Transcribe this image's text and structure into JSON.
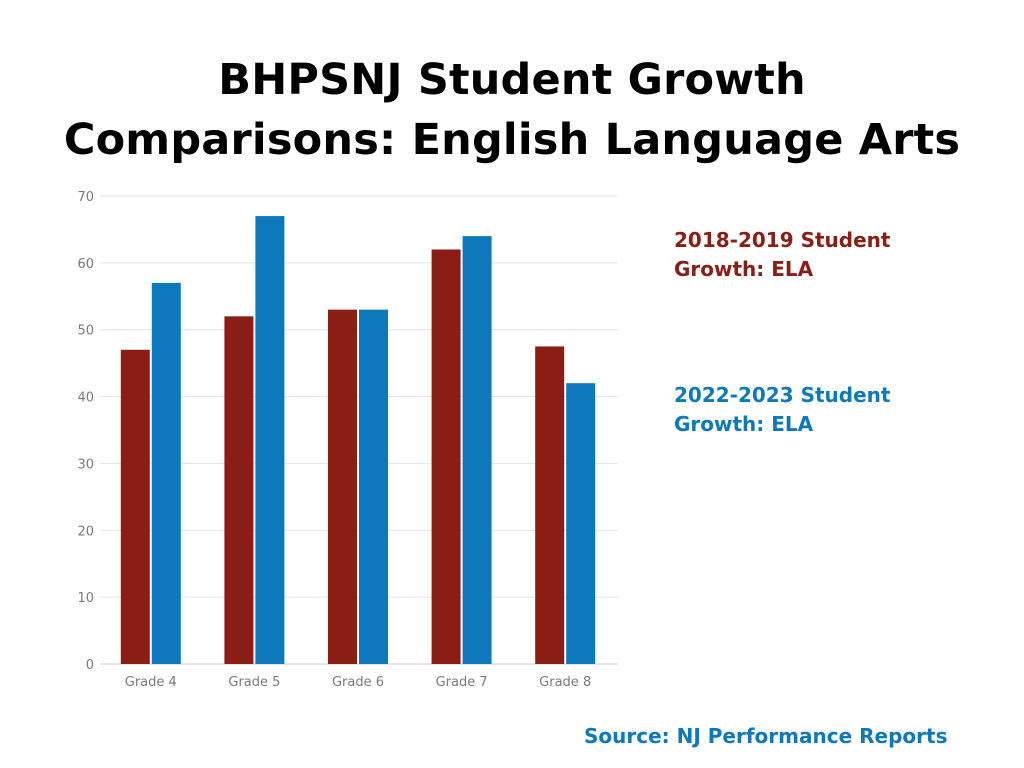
{
  "chart_data": {
    "type": "bar",
    "title": "BHPSNJ Student Growth Comparisons: English Language Arts",
    "title_lines": [
      "BHPSNJ Student Growth",
      "Comparisons: English Language Arts"
    ],
    "categories": [
      "Grade 4",
      "Grade 5",
      "Grade 6",
      "Grade 7",
      "Grade 8"
    ],
    "series": [
      {
        "name": "2018-2019 Student Growth: ELA",
        "name_lines": [
          "2018-2019 Student",
          "Growth: ELA"
        ],
        "color": "#8b1e14",
        "values": [
          47,
          52,
          53,
          62,
          47.5
        ]
      },
      {
        "name": "2022-2023 Student Growth: ELA",
        "name_lines": [
          "2022-2023 Student",
          "Growth: ELA"
        ],
        "color": "#0e78bd",
        "values": [
          57,
          67,
          53,
          64,
          42
        ]
      }
    ],
    "ylim": [
      0,
      70
    ],
    "yticks": [
      0,
      10,
      20,
      30,
      40,
      50,
      60,
      70
    ],
    "grid": true,
    "legend": "right",
    "xlabel": "",
    "ylabel": ""
  },
  "source": "Source: NJ Performance Reports"
}
